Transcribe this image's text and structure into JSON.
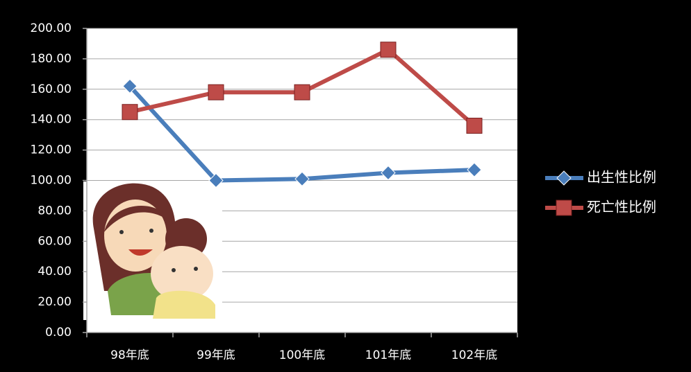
{
  "chart_data": {
    "type": "line",
    "categories": [
      "98年底",
      "99年底",
      "100年底",
      "101年底",
      "102年底"
    ],
    "series": [
      {
        "name": "出生性比例",
        "color": "#4a7ebb",
        "marker": "diamond",
        "values": [
          162,
          100,
          101,
          105,
          107
        ]
      },
      {
        "name": "死亡性比例",
        "color": "#be4b48",
        "marker": "square",
        "values": [
          145,
          158,
          158,
          186,
          136
        ]
      }
    ],
    "ylim": [
      0,
      200
    ],
    "yticks": [
      {
        "value": 0,
        "label": "0.00"
      },
      {
        "value": 20,
        "label": "20.00"
      },
      {
        "value": 40,
        "label": "40.00"
      },
      {
        "value": 60,
        "label": "60.00"
      },
      {
        "value": 80,
        "label": "80.00"
      },
      {
        "value": 100,
        "label": "100.00"
      },
      {
        "value": 120,
        "label": "120.00"
      },
      {
        "value": 140,
        "label": "140.00"
      },
      {
        "value": 160,
        "label": "160.00"
      },
      {
        "value": 180,
        "label": "180.00"
      },
      {
        "value": 200,
        "label": "200.00"
      }
    ],
    "grid": true,
    "legend": "right"
  }
}
